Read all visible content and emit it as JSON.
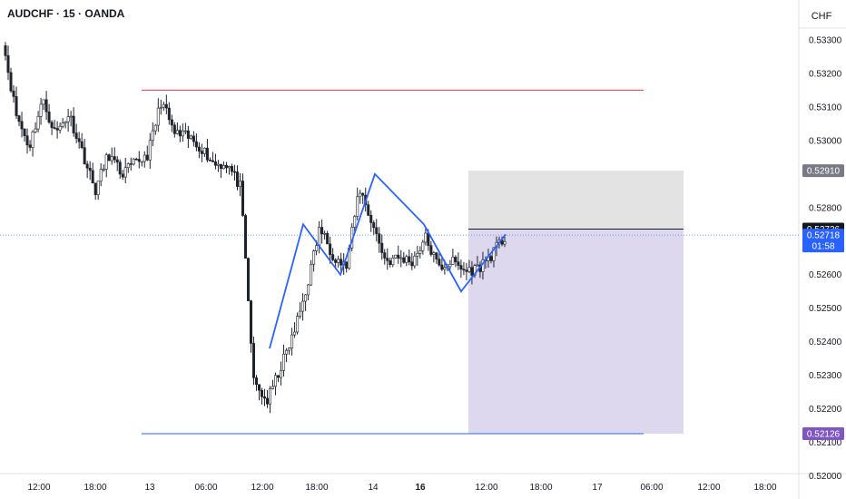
{
  "header": {
    "symbol_line": "AUDCHF · 15 · OANDA"
  },
  "axis": {
    "currency_label": "CHF"
  },
  "chart_data": {
    "type": "candlestick",
    "title": "AUDCHF · 15 · OANDA",
    "xlabel": "",
    "ylabel": "CHF",
    "ylim": [
      0.5198,
      0.5337
    ],
    "y_ticks": [
      "0.53300",
      "0.53200",
      "0.53100",
      "0.53000",
      "0.52800",
      "0.52600",
      "0.52500",
      "0.52400",
      "0.52300",
      "0.52200",
      "0.52100",
      "0.52000"
    ],
    "x_ticks": [
      {
        "label": "12:00",
        "bold": false
      },
      {
        "label": "18:00",
        "bold": false
      },
      {
        "label": "13",
        "bold": false
      },
      {
        "label": "06:00",
        "bold": false
      },
      {
        "label": "12:00",
        "bold": false
      },
      {
        "label": "18:00",
        "bold": false
      },
      {
        "label": "14",
        "bold": false
      },
      {
        "label": "16",
        "bold": true
      },
      {
        "label": "12:00",
        "bold": false
      },
      {
        "label": "18:00",
        "bold": false
      },
      {
        "label": "17",
        "bold": false
      },
      {
        "label": "06:00",
        "bold": false
      },
      {
        "label": "12:00",
        "bold": false
      },
      {
        "label": "18:00",
        "bold": false
      }
    ],
    "price_tags": [
      {
        "value": "0.52910",
        "color": "#787b86"
      },
      {
        "value": "0.52736",
        "color": "#131722"
      },
      {
        "value": "0.52718",
        "sub": "01:58",
        "color": "#2962ff"
      },
      {
        "value": "0.52126",
        "color": "#7e57c2"
      }
    ],
    "levels": {
      "resistance": 0.5315,
      "support": 0.52126,
      "stop": 0.5291,
      "entry": 0.52736,
      "target": 0.52126,
      "last": 0.52718
    },
    "zigzag": [
      0.5238,
      0.5275,
      0.526,
      0.529,
      0.5275,
      0.5255,
      0.5272
    ],
    "candle_anchors": [
      0.533,
      0.5308,
      0.5298,
      0.5312,
      0.5302,
      0.5308,
      0.5297,
      0.5285,
      0.5296,
      0.529,
      0.5293,
      0.5296,
      0.5312,
      0.5302,
      0.5301,
      0.5298,
      0.5293,
      0.5293,
      0.5286,
      0.5228,
      0.5222,
      0.5232,
      0.5242,
      0.5256,
      0.5274,
      0.5266,
      0.5262,
      0.5286,
      0.5275,
      0.5264,
      0.5265,
      0.5264,
      0.5271,
      0.5262,
      0.5264,
      0.5261,
      0.5262,
      0.5266,
      0.5271
    ],
    "colors": {
      "up": "#1e222d",
      "down": "#1e222d",
      "zigzag": "#2962ff",
      "resistance": "#f23645",
      "support": "#2962ff",
      "stop_zone": "#e0e0e0",
      "target_zone": "#dcd6ee"
    }
  }
}
